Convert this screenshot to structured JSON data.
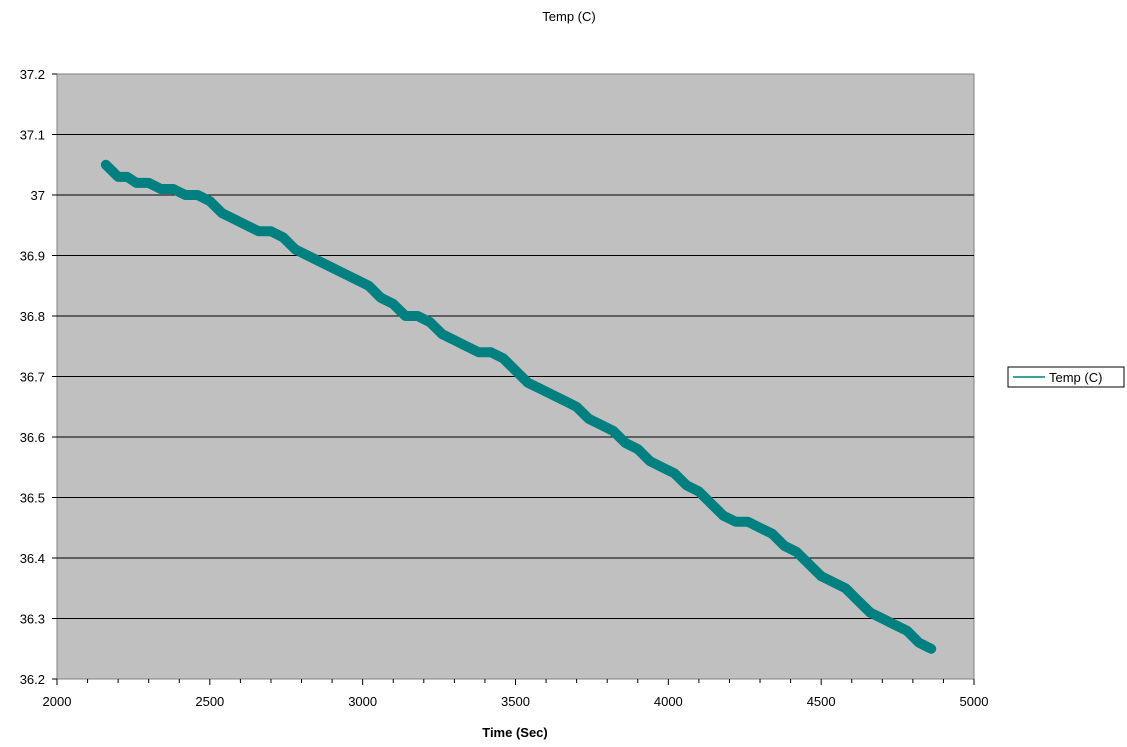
{
  "chart_data": {
    "type": "line",
    "title": "Temp (C)",
    "xlabel": "Time (Sec)",
    "ylabel": "",
    "xlim": [
      2000,
      5000
    ],
    "ylim": [
      36.2,
      37.2
    ],
    "x_ticks": [
      "2000",
      "2500",
      "3000",
      "3500",
      "4000",
      "4500",
      "5000"
    ],
    "y_ticks": [
      "36.2",
      "36.3",
      "36.4",
      "36.5",
      "36.6",
      "36.7",
      "36.8",
      "36.9",
      "37",
      "37.1",
      "37.2"
    ],
    "grid": "horizontal",
    "legend_position": "right",
    "plot_background": "#c0c0c0",
    "series": [
      {
        "name": "Temp (C)",
        "color": "#008080",
        "x": [
          2160,
          2180,
          2200,
          2230,
          2260,
          2300,
          2340,
          2380,
          2420,
          2460,
          2500,
          2540,
          2580,
          2620,
          2660,
          2700,
          2740,
          2780,
          2820,
          2860,
          2900,
          2940,
          2980,
          3020,
          3060,
          3100,
          3140,
          3180,
          3220,
          3260,
          3300,
          3340,
          3380,
          3420,
          3460,
          3500,
          3540,
          3580,
          3620,
          3660,
          3700,
          3740,
          3780,
          3820,
          3860,
          3900,
          3940,
          3980,
          4020,
          4060,
          4100,
          4140,
          4180,
          4220,
          4260,
          4300,
          4340,
          4380,
          4420,
          4460,
          4500,
          4540,
          4580,
          4620,
          4660,
          4700,
          4740,
          4780,
          4820,
          4860
        ],
        "y": [
          37.05,
          37.04,
          37.03,
          37.03,
          37.02,
          37.02,
          37.01,
          37.01,
          37.0,
          37.0,
          36.99,
          36.97,
          36.96,
          36.95,
          36.94,
          36.94,
          36.93,
          36.91,
          36.9,
          36.89,
          36.88,
          36.87,
          36.86,
          36.85,
          36.83,
          36.82,
          36.8,
          36.8,
          36.79,
          36.77,
          36.76,
          36.75,
          36.74,
          36.74,
          36.73,
          36.71,
          36.69,
          36.68,
          36.67,
          36.66,
          36.65,
          36.63,
          36.62,
          36.61,
          36.59,
          36.58,
          36.56,
          36.55,
          36.54,
          36.52,
          36.51,
          36.49,
          36.47,
          36.46,
          36.46,
          36.45,
          36.44,
          36.42,
          36.41,
          36.39,
          36.37,
          36.36,
          36.35,
          36.33,
          36.31,
          36.3,
          36.29,
          36.28,
          36.26,
          36.25
        ]
      }
    ]
  }
}
